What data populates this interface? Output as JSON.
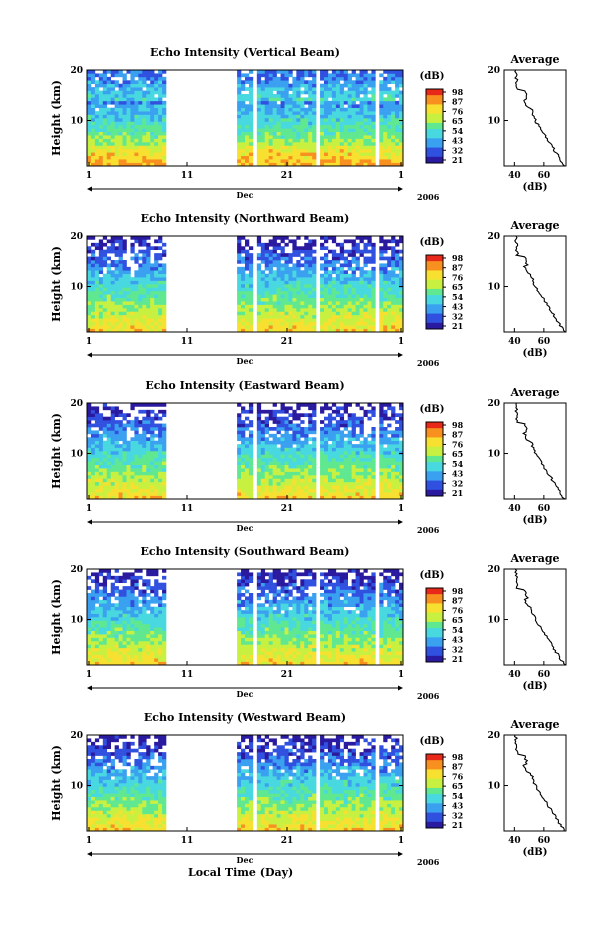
{
  "chart_data": [
    {
      "type": "heatmap",
      "title": "Echo Intensity (Vertical Beam)",
      "ylabel": "Height (km)",
      "xticks": [
        "1",
        "11",
        "21",
        "1"
      ],
      "month_label": "Dec",
      "year_label": "2006",
      "yticks": [
        "20",
        "10"
      ],
      "ylim": [
        1,
        20
      ],
      "colorbar_unit": "(dB)",
      "colorbar_ticks": [
        "98",
        "87",
        "76",
        "65",
        "54",
        "43",
        "32",
        "21"
      ],
      "average": {
        "title": "Average",
        "xlabel": "(dB)",
        "xticks": [
          "40",
          "60"
        ],
        "yticks": [
          "20",
          "10"
        ]
      },
      "gaps": [
        [
          25,
          46
        ],
        [
          46.5,
          47.2
        ],
        [
          53.1,
          54.1
        ],
        [
          67.1,
          67.9
        ],
        [
          73.1,
          74.1
        ],
        [
          77.1,
          78
        ],
        [
          82,
          82.8
        ],
        [
          91.7,
          92.5
        ],
        [
          94.6,
          95.2
        ]
      ]
    },
    {
      "type": "heatmap",
      "title": "Echo Intensity (Northward Beam)",
      "ylabel": "Height (km)",
      "xticks": [
        "1",
        "11",
        "21",
        "1"
      ],
      "month_label": "Dec",
      "year_label": "2006",
      "yticks": [
        "20",
        "10"
      ],
      "ylim": [
        1,
        20
      ],
      "colorbar_unit": "(dB)",
      "colorbar_ticks": [
        "98",
        "87",
        "76",
        "65",
        "54",
        "43",
        "32",
        "21"
      ],
      "average": {
        "title": "Average",
        "xlabel": "(dB)",
        "xticks": [
          "40",
          "60"
        ],
        "yticks": [
          "20",
          "10"
        ]
      },
      "gaps": [
        [
          25,
          46
        ],
        [
          46.5,
          47.2
        ],
        [
          53.1,
          54.1
        ],
        [
          67.1,
          67.9
        ],
        [
          73.1,
          74.1
        ],
        [
          77.1,
          78
        ],
        [
          82,
          82.8
        ],
        [
          91.7,
          92.5
        ],
        [
          94.6,
          95.2
        ]
      ]
    },
    {
      "type": "heatmap",
      "title": "Echo Intensity (Eastward Beam)",
      "ylabel": "Height (km)",
      "xticks": [
        "1",
        "11",
        "21",
        "1"
      ],
      "month_label": "Dec",
      "year_label": "2006",
      "yticks": [
        "20",
        "10"
      ],
      "ylim": [
        1,
        20
      ],
      "colorbar_unit": "(dB)",
      "colorbar_ticks": [
        "98",
        "87",
        "76",
        "65",
        "54",
        "43",
        "32",
        "21"
      ],
      "average": {
        "title": "Average",
        "xlabel": "(dB)",
        "xticks": [
          "40",
          "60"
        ],
        "yticks": [
          "20",
          "10"
        ]
      },
      "gaps": [
        [
          25,
          46
        ],
        [
          46.5,
          47.2
        ],
        [
          53.1,
          54.1
        ],
        [
          67.1,
          67.9
        ],
        [
          73.1,
          74.1
        ],
        [
          77.1,
          78
        ],
        [
          82,
          82.8
        ],
        [
          91.7,
          92.5
        ],
        [
          94.6,
          95.2
        ]
      ]
    },
    {
      "type": "heatmap",
      "title": "Echo Intensity (Southward Beam)",
      "ylabel": "Height (km)",
      "xticks": [
        "1",
        "11",
        "21",
        "1"
      ],
      "month_label": "Dec",
      "year_label": "2006",
      "yticks": [
        "20",
        "10"
      ],
      "ylim": [
        1,
        20
      ],
      "colorbar_unit": "(dB)",
      "colorbar_ticks": [
        "98",
        "87",
        "76",
        "65",
        "54",
        "43",
        "32",
        "21"
      ],
      "average": {
        "title": "Average",
        "xlabel": "(dB)",
        "xticks": [
          "40",
          "60"
        ],
        "yticks": [
          "20",
          "10"
        ]
      },
      "gaps": [
        [
          25,
          46
        ],
        [
          46.5,
          47.2
        ],
        [
          53.1,
          54.1
        ],
        [
          67.1,
          67.9
        ],
        [
          73.1,
          74.1
        ],
        [
          77.1,
          78
        ],
        [
          82,
          82.8
        ],
        [
          91.7,
          92.5
        ],
        [
          94.6,
          95.2
        ]
      ]
    },
    {
      "type": "heatmap",
      "title": "Echo Intensity (Westward Beam)",
      "ylabel": "Height (km)",
      "xticks": [
        "1",
        "11",
        "21",
        "1"
      ],
      "month_label": "Dec",
      "year_label": "2006",
      "yticks": [
        "20",
        "10"
      ],
      "ylim": [
        1,
        20
      ],
      "colorbar_unit": "(dB)",
      "colorbar_ticks": [
        "98",
        "87",
        "76",
        "65",
        "54",
        "43",
        "32",
        "21"
      ],
      "average": {
        "title": "Average",
        "xlabel": "(dB)",
        "xticks": [
          "40",
          "60"
        ],
        "yticks": [
          "20",
          "10"
        ]
      },
      "gaps": [
        [
          25,
          46
        ],
        [
          46.5,
          47.2
        ],
        [
          53.1,
          54.1
        ],
        [
          67.1,
          67.9
        ],
        [
          73.1,
          74.1
        ],
        [
          77.1,
          78
        ],
        [
          82,
          82.8
        ],
        [
          91.7,
          92.5
        ],
        [
          94.6,
          95.2
        ]
      ]
    }
  ],
  "xlabel": "Local Time (Day)",
  "colormap": [
    "#2a1aa0",
    "#3050e0",
    "#3aa0f0",
    "#48d8e0",
    "#60e890",
    "#c8f040",
    "#f8e030",
    "#f89020",
    "#e82818"
  ]
}
